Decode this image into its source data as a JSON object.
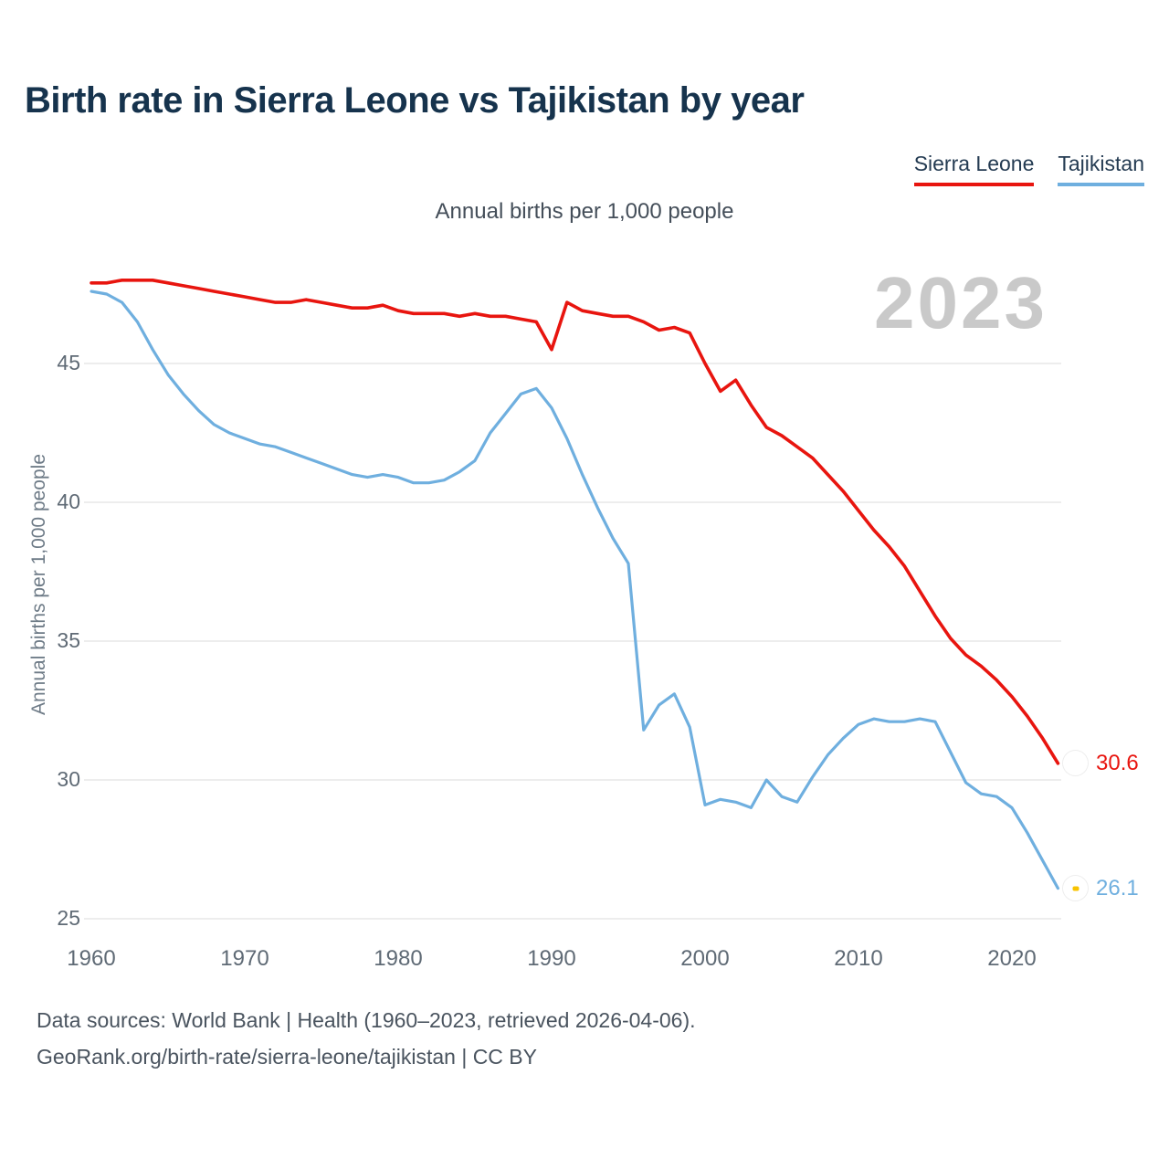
{
  "chart_data": {
    "type": "line",
    "title": "Birth rate in Sierra Leone vs Tajikistan by year",
    "subtitle": "Annual births per 1,000 people",
    "ylabel": "Annual births per 1,000 people",
    "xlabel": "",
    "watermark": "2023",
    "grid": "horizontal",
    "legend_position": "top-right",
    "xlim": [
      1960,
      2023
    ],
    "ylim": [
      24.5,
      48.5
    ],
    "x_ticks": [
      1960,
      1970,
      1980,
      1990,
      2000,
      2010,
      2020
    ],
    "y_ticks": [
      25,
      30,
      35,
      40,
      45
    ],
    "x": [
      1960,
      1961,
      1962,
      1963,
      1964,
      1965,
      1966,
      1967,
      1968,
      1969,
      1970,
      1971,
      1972,
      1973,
      1974,
      1975,
      1976,
      1977,
      1978,
      1979,
      1980,
      1981,
      1982,
      1983,
      1984,
      1985,
      1986,
      1987,
      1988,
      1989,
      1990,
      1991,
      1992,
      1993,
      1994,
      1995,
      1996,
      1997,
      1998,
      1999,
      2000,
      2001,
      2002,
      2003,
      2004,
      2005,
      2006,
      2007,
      2008,
      2009,
      2010,
      2011,
      2012,
      2013,
      2014,
      2015,
      2016,
      2017,
      2018,
      2019,
      2020,
      2021,
      2022,
      2023
    ],
    "series": [
      {
        "name": "Sierra Leone",
        "color": "#e8150f",
        "end_label": "30.6",
        "values": [
          47.9,
          47.9,
          48.0,
          48.0,
          48.0,
          47.9,
          47.8,
          47.7,
          47.6,
          47.5,
          47.4,
          47.3,
          47.2,
          47.2,
          47.3,
          47.2,
          47.1,
          47.0,
          47.0,
          47.1,
          46.9,
          46.8,
          46.8,
          46.8,
          46.7,
          46.8,
          46.7,
          46.7,
          46.6,
          46.5,
          45.5,
          47.2,
          46.9,
          46.8,
          46.7,
          46.7,
          46.5,
          46.2,
          46.3,
          46.1,
          45.0,
          44.0,
          44.4,
          43.5,
          42.7,
          42.4,
          42.0,
          41.6,
          41.0,
          40.4,
          39.7,
          39.0,
          38.4,
          37.7,
          36.8,
          35.9,
          35.1,
          34.5,
          34.1,
          33.6,
          33.0,
          32.3,
          31.5,
          30.6
        ]
      },
      {
        "name": "Tajikistan",
        "color": "#6fafdf",
        "end_label": "26.1",
        "values": [
          47.6,
          47.5,
          47.2,
          46.5,
          45.5,
          44.6,
          43.9,
          43.3,
          42.8,
          42.5,
          42.3,
          42.1,
          42.0,
          41.8,
          41.6,
          41.4,
          41.2,
          41.0,
          40.9,
          41.0,
          40.9,
          40.7,
          40.7,
          40.8,
          41.1,
          41.5,
          42.5,
          43.2,
          43.9,
          44.1,
          43.4,
          42.3,
          41.0,
          39.8,
          38.7,
          37.8,
          31.8,
          32.7,
          33.1,
          31.9,
          29.1,
          29.3,
          29.2,
          29.0,
          30.0,
          29.4,
          29.2,
          30.1,
          30.9,
          31.5,
          32.0,
          32.2,
          32.1,
          32.1,
          32.2,
          32.1,
          31.0,
          29.9,
          29.5,
          29.4,
          29.0,
          28.1,
          27.1,
          26.1
        ]
      }
    ]
  },
  "footer": {
    "line1": "Data sources: World Bank | Health (1960–2023, retrieved 2026-04-06).",
    "line2": "GeoRank.org/birth-rate/sierra-leone/tajikistan | CC BY"
  }
}
